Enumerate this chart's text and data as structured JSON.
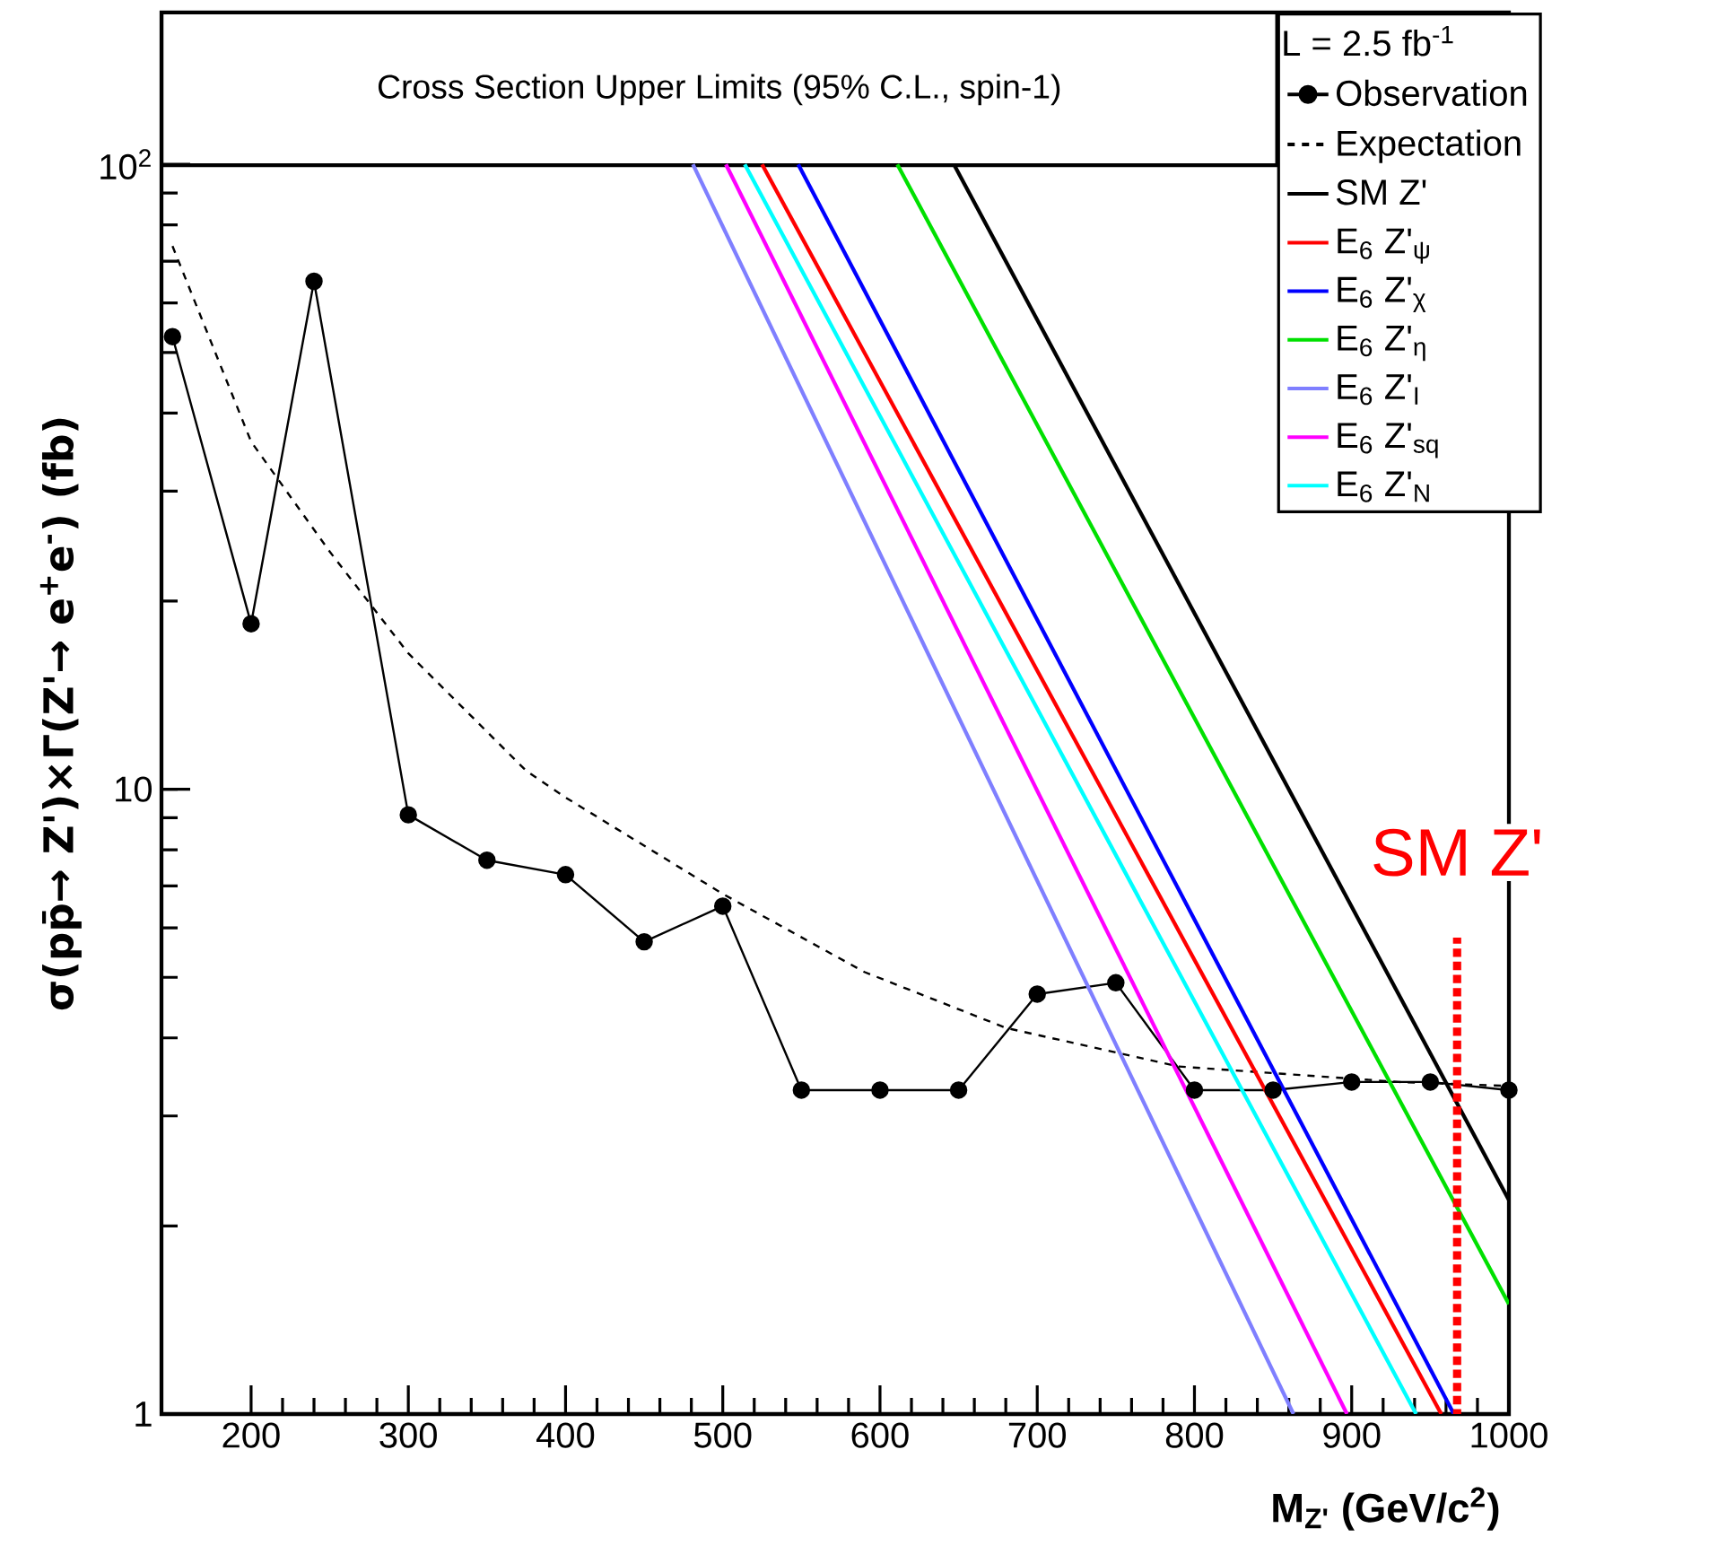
{
  "chart_data": {
    "type": "line",
    "title": "Cross Section Upper Limits (95% C.L., spin-1)",
    "xlabel": "M$_{Z'}$ (GeV/c$^{2}$)",
    "ylabel": "σ(pp̄→ Z')×Γ(Z'→ e$^{+}$e$^{-}$) (fb)",
    "legend_title": "L = 2.5 fb$^{-1}$",
    "legend": "top right",
    "log": "y",
    "xlim": [
      143,
      1000
    ],
    "xticks": [
      200,
      300,
      400,
      500,
      600,
      700,
      800,
      900,
      1000
    ],
    "ylim": [
      1,
      175
    ],
    "yticks": [
      1,
      10,
      {
        "value": 100,
        "label": "10$^{2}$"
      }
    ],
    "x": [
      150,
      200,
      240,
      300,
      350,
      400,
      450,
      500,
      550,
      600,
      650,
      700,
      750,
      800,
      850,
      900,
      950,
      1000
    ],
    "series": [
      {
        "name": "Observation",
        "color": "#000000",
        "marker": "circle",
        "line_style": "solid",
        "values": [
          53,
          18.4,
          65,
          9.1,
          7.7,
          7.3,
          5.7,
          6.5,
          3.3,
          3.3,
          3.3,
          4.7,
          4.9,
          3.3,
          3.3,
          3.4,
          3.4,
          3.3
        ]
      },
      {
        "name": "Expectation",
        "color": "#000000",
        "marker": "none",
        "line_style": "dashed",
        "x": [
          150,
          200,
          250,
          300,
          375,
          400,
          500,
          590,
          680,
          790,
          930,
          1000
        ],
        "values": [
          74,
          36,
          24,
          16.5,
          10.7,
          9.7,
          6.8,
          5.1,
          4.15,
          3.6,
          3.4,
          3.35
        ]
      },
      {
        "name": "SM Z'",
        "color": "#000000",
        "marker": "none",
        "line_style": "solid",
        "x": [
          647,
          1000
        ],
        "values": [
          100,
          2.2
        ]
      },
      {
        "name": "E$_{6}$ Z'$_{ψ}$",
        "color": "#ff0000",
        "marker": "none",
        "line_style": "solid",
        "x": [
          525,
          957
        ],
        "values": [
          100,
          1
        ]
      },
      {
        "name": "E$_{6}$ Z'$_{χ}$",
        "color": "#0000ff",
        "marker": "none",
        "line_style": "solid",
        "x": [
          548,
          965
        ],
        "values": [
          100,
          1
        ]
      },
      {
        "name": "E$_{6}$ Z'$_{η}$",
        "color": "#00e000",
        "marker": "none",
        "line_style": "solid",
        "x": [
          611,
          1000
        ],
        "values": [
          100,
          1.5
        ]
      },
      {
        "name": "E$_{6}$ Z'$_{I}$",
        "color": "#7f7fff",
        "marker": "none",
        "line_style": "solid",
        "x": [
          481,
          863
        ],
        "values": [
          100,
          1
        ]
      },
      {
        "name": "E$_{6}$ Z'$_{sq}$",
        "color": "#ff00ff",
        "marker": "none",
        "line_style": "solid",
        "x": [
          502,
          897
        ],
        "values": [
          100,
          1
        ]
      },
      {
        "name": "E$_{6}$ Z'$_{N}$",
        "color": "#00ffff",
        "marker": "none",
        "line_style": "solid",
        "x": [
          514,
          941
        ],
        "values": [
          100,
          1
        ]
      }
    ],
    "ref_lines": [
      {
        "axis": "x",
        "value": 967,
        "label": "SM Z'",
        "color": "#ff0000",
        "line_style": "dotted"
      }
    ]
  }
}
